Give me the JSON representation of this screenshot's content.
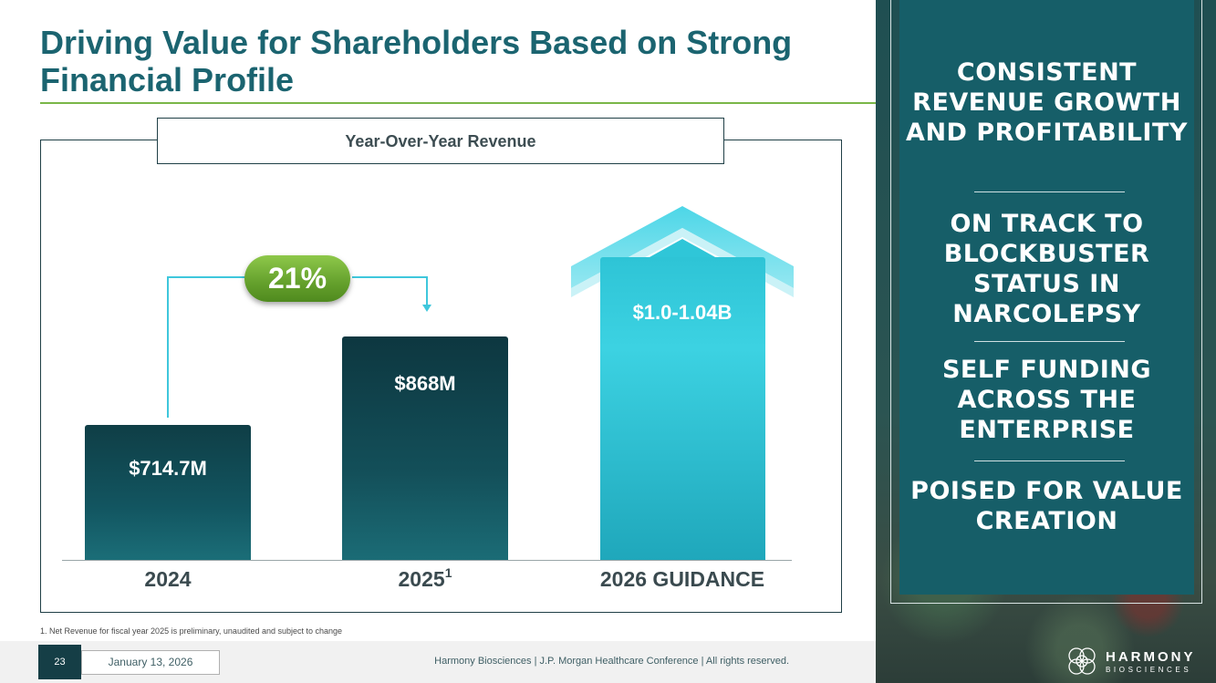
{
  "slide": {
    "title": "Driving Value for Shareholders Based on Strong Financial Profile",
    "page_number": "23",
    "date": "January 13, 2026",
    "footer": "Harmony Biosciences | J.P. Morgan Healthcare Conference | All rights reserved.",
    "footnote": "1. Net Revenue for fiscal year 2025 is preliminary, unaudited and subject to change"
  },
  "chart": {
    "title": "Year-Over-Year Revenue",
    "growth_label": "21%",
    "bars": [
      {
        "label": "2024",
        "superscript": "",
        "value_label": "$714.7M"
      },
      {
        "label": "2025",
        "superscript": "1",
        "value_label": "$868M"
      },
      {
        "label": "2026 GUIDANCE",
        "superscript": "",
        "value_label": "$1.0-1.04B"
      }
    ]
  },
  "chart_data": {
    "type": "bar",
    "title": "Year-Over-Year Revenue",
    "categories": [
      "2024",
      "2025",
      "2026 GUIDANCE"
    ],
    "values": [
      714.7,
      868,
      1020
    ],
    "value_labels": [
      "$714.7M",
      "$868M",
      "$1.0-1.04B"
    ],
    "annotations": [
      "21%"
    ]
  },
  "sidebar": {
    "items": [
      {
        "text": "CONSISTENT REVENUE GROWTH AND PROFITABILITY"
      },
      {
        "text": "ON TRACK TO BLOCKBUSTER STATUS IN NARCOLEPSY"
      },
      {
        "text": "SELF FUNDING ACROSS THE ENTERPRISE"
      },
      {
        "text": "POISED FOR VALUE CREATION"
      }
    ]
  },
  "logo": {
    "name": "HARMONY",
    "sub": "BIOSCIENCES"
  },
  "colors": {
    "title": "#1b6470",
    "accent_green": "#7ab648",
    "dark_teal": "#134f59",
    "cyan": "#3cd2e2",
    "side_panel": "#165e68"
  }
}
